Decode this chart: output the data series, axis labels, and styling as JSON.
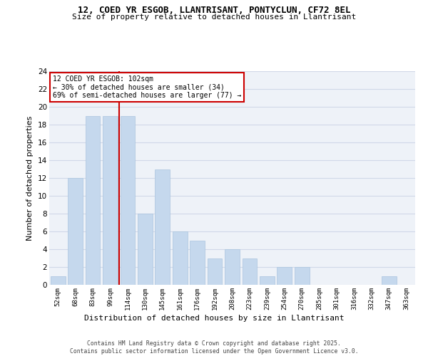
{
  "title_line1": "12, COED YR ESGOB, LLANTRISANT, PONTYCLUN, CF72 8EL",
  "title_line2": "Size of property relative to detached houses in Llantrisant",
  "xlabel": "Distribution of detached houses by size in Llantrisant",
  "ylabel": "Number of detached properties",
  "categories": [
    "52sqm",
    "68sqm",
    "83sqm",
    "99sqm",
    "114sqm",
    "130sqm",
    "145sqm",
    "161sqm",
    "176sqm",
    "192sqm",
    "208sqm",
    "223sqm",
    "239sqm",
    "254sqm",
    "270sqm",
    "285sqm",
    "301sqm",
    "316sqm",
    "332sqm",
    "347sqm",
    "363sqm"
  ],
  "values": [
    1,
    12,
    19,
    19,
    19,
    8,
    13,
    6,
    5,
    3,
    4,
    3,
    1,
    2,
    2,
    0,
    0,
    0,
    0,
    1,
    0
  ],
  "bar_color": "#c5d8ed",
  "bar_edgecolor": "#aac4de",
  "vline_x": 3.5,
  "vline_color": "#cc0000",
  "annotation_text": "12 COED YR ESGOB: 102sqm\n← 30% of detached houses are smaller (34)\n69% of semi-detached houses are larger (77) →",
  "annotation_box_color": "#ffffff",
  "annotation_box_edgecolor": "#cc0000",
  "ylim": [
    0,
    24
  ],
  "yticks": [
    0,
    2,
    4,
    6,
    8,
    10,
    12,
    14,
    16,
    18,
    20,
    22,
    24
  ],
  "grid_color": "#d0d8e8",
  "bg_color": "#eef2f8",
  "footer_text": "Contains HM Land Registry data © Crown copyright and database right 2025.\nContains public sector information licensed under the Open Government Licence v3.0."
}
